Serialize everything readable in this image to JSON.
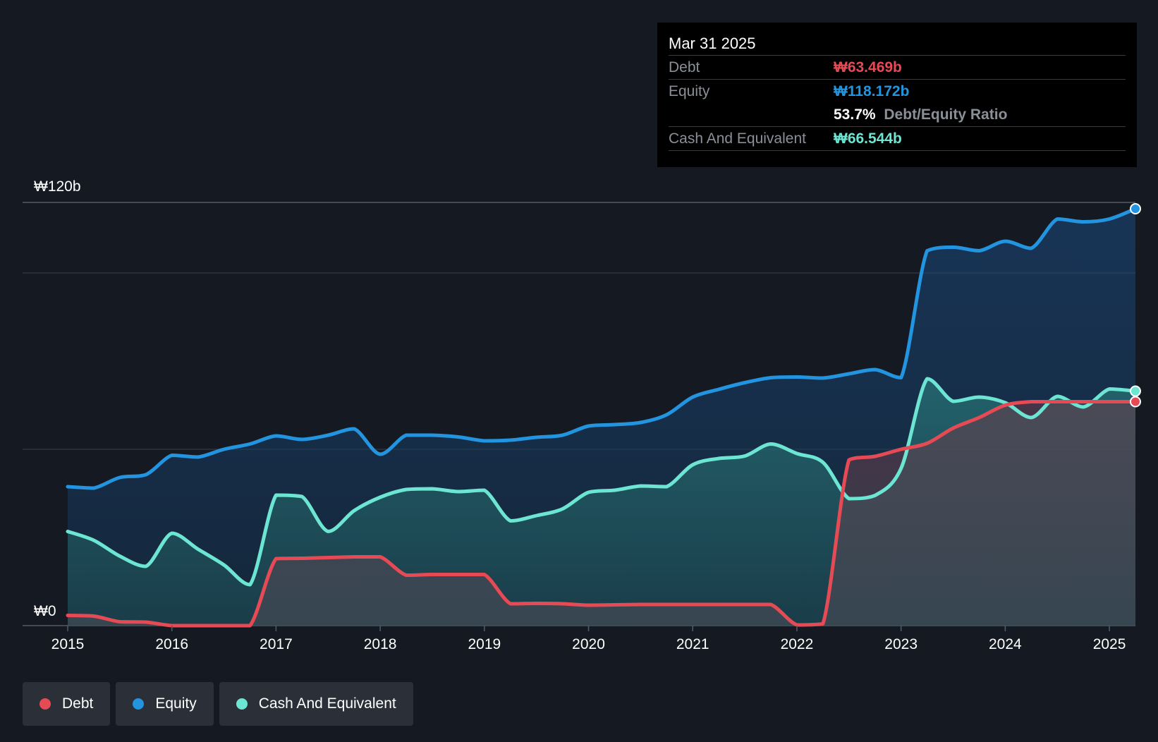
{
  "chart_data": {
    "type": "area",
    "title": "",
    "currency_prefix": "₩",
    "y_axis_labels": [
      "₩120b",
      "₩0"
    ],
    "ylim": [
      0,
      120
    ],
    "xlim": [
      2015,
      2025.25
    ],
    "x_ticks": [
      {
        "value": 2015,
        "label": "2015"
      },
      {
        "value": 2016,
        "label": "2016"
      },
      {
        "value": 2017,
        "label": "2017"
      },
      {
        "value": 2018,
        "label": "2018"
      },
      {
        "value": 2019,
        "label": "2019"
      },
      {
        "value": 2020,
        "label": "2020"
      },
      {
        "value": 2021,
        "label": "2021"
      },
      {
        "value": 2022,
        "label": "2022"
      },
      {
        "value": 2023,
        "label": "2023"
      },
      {
        "value": 2024,
        "label": "2024"
      },
      {
        "value": 2025,
        "label": "2025"
      }
    ],
    "gridlines": [
      120,
      100,
      50
    ],
    "series": [
      {
        "name": "Equity",
        "color": "#2394df",
        "points": [
          [
            2015.0,
            39.4
          ],
          [
            2015.25,
            39.0
          ],
          [
            2015.5,
            42.0
          ],
          [
            2015.75,
            42.8
          ],
          [
            2016.0,
            48.3
          ],
          [
            2016.25,
            47.8
          ],
          [
            2016.5,
            50.0
          ],
          [
            2016.75,
            51.5
          ],
          [
            2017.0,
            53.8
          ],
          [
            2017.25,
            52.8
          ],
          [
            2017.5,
            54.0
          ],
          [
            2017.75,
            55.8
          ],
          [
            2018.0,
            48.6
          ],
          [
            2018.25,
            54.0
          ],
          [
            2018.5,
            54.0
          ],
          [
            2018.75,
            53.5
          ],
          [
            2019.0,
            52.4
          ],
          [
            2019.25,
            52.6
          ],
          [
            2019.5,
            53.4
          ],
          [
            2019.75,
            54.0
          ],
          [
            2020.0,
            56.6
          ],
          [
            2020.25,
            57.0
          ],
          [
            2020.5,
            57.6
          ],
          [
            2020.75,
            59.8
          ],
          [
            2021.0,
            64.8
          ],
          [
            2021.25,
            67.0
          ],
          [
            2021.5,
            68.9
          ],
          [
            2021.75,
            70.3
          ],
          [
            2022.0,
            70.5
          ],
          [
            2022.25,
            70.2
          ],
          [
            2022.5,
            71.4
          ],
          [
            2022.75,
            72.6
          ],
          [
            2023.0,
            70.3
          ],
          [
            2023.25,
            106.3
          ],
          [
            2023.5,
            107.3
          ],
          [
            2023.75,
            106.3
          ],
          [
            2024.0,
            109.0
          ],
          [
            2024.25,
            107.0
          ],
          [
            2024.5,
            115.3
          ],
          [
            2024.75,
            114.5
          ],
          [
            2025.0,
            115.3
          ],
          [
            2025.25,
            118.2
          ]
        ]
      },
      {
        "name": "Cash And Equivalent",
        "color": "#6ce5d3",
        "points": [
          [
            2015.0,
            26.7
          ],
          [
            2015.25,
            24.2
          ],
          [
            2015.5,
            19.7
          ],
          [
            2015.75,
            16.8
          ],
          [
            2016.0,
            26.2
          ],
          [
            2016.25,
            21.7
          ],
          [
            2016.5,
            17.2
          ],
          [
            2016.75,
            11.6
          ],
          [
            2017.0,
            37.0
          ],
          [
            2017.25,
            36.6
          ],
          [
            2017.5,
            26.7
          ],
          [
            2017.75,
            32.6
          ],
          [
            2018.0,
            36.4
          ],
          [
            2018.25,
            38.6
          ],
          [
            2018.5,
            38.8
          ],
          [
            2018.75,
            38.0
          ],
          [
            2019.0,
            38.4
          ],
          [
            2019.25,
            29.7
          ],
          [
            2019.5,
            31.2
          ],
          [
            2019.75,
            33.1
          ],
          [
            2020.0,
            37.8
          ],
          [
            2020.25,
            38.4
          ],
          [
            2020.5,
            39.6
          ],
          [
            2020.75,
            39.4
          ],
          [
            2021.0,
            45.6
          ],
          [
            2021.25,
            47.4
          ],
          [
            2021.5,
            48.1
          ],
          [
            2021.75,
            51.5
          ],
          [
            2022.0,
            48.8
          ],
          [
            2022.25,
            46.3
          ],
          [
            2022.5,
            36.0
          ],
          [
            2022.75,
            36.9
          ],
          [
            2023.0,
            44.6
          ],
          [
            2023.25,
            70.0
          ],
          [
            2023.5,
            63.6
          ],
          [
            2023.75,
            64.8
          ],
          [
            2024.0,
            63.2
          ],
          [
            2024.25,
            59.0
          ],
          [
            2024.5,
            65.0
          ],
          [
            2024.75,
            62.0
          ],
          [
            2025.0,
            67.1
          ],
          [
            2025.25,
            66.5
          ]
        ]
      },
      {
        "name": "Debt",
        "color": "#e64a54",
        "points": [
          [
            2015.0,
            2.9
          ],
          [
            2015.25,
            2.7
          ],
          [
            2015.5,
            1.1
          ],
          [
            2015.75,
            1.0
          ],
          [
            2016.0,
            0.0
          ],
          [
            2016.25,
            0.0
          ],
          [
            2016.5,
            0.0
          ],
          [
            2016.75,
            0.0
          ],
          [
            2017.0,
            19.0
          ],
          [
            2017.25,
            19.1
          ],
          [
            2017.5,
            19.3
          ],
          [
            2017.75,
            19.5
          ],
          [
            2018.0,
            19.5
          ],
          [
            2018.25,
            14.3
          ],
          [
            2018.5,
            14.5
          ],
          [
            2018.75,
            14.5
          ],
          [
            2019.0,
            14.5
          ],
          [
            2019.25,
            6.2
          ],
          [
            2019.5,
            6.3
          ],
          [
            2019.75,
            6.2
          ],
          [
            2020.0,
            5.8
          ],
          [
            2020.25,
            5.9
          ],
          [
            2020.5,
            6.0
          ],
          [
            2020.75,
            6.0
          ],
          [
            2021.0,
            6.0
          ],
          [
            2021.25,
            6.0
          ],
          [
            2021.5,
            6.0
          ],
          [
            2021.75,
            6.0
          ],
          [
            2022.0,
            0.2
          ],
          [
            2022.25,
            0.5
          ],
          [
            2022.5,
            47.0
          ],
          [
            2022.75,
            48.0
          ],
          [
            2023.0,
            50.0
          ],
          [
            2023.25,
            51.7
          ],
          [
            2023.5,
            56.0
          ],
          [
            2023.75,
            59.0
          ],
          [
            2024.0,
            62.5
          ],
          [
            2024.25,
            63.5
          ],
          [
            2024.5,
            63.5
          ],
          [
            2024.75,
            63.5
          ],
          [
            2025.0,
            63.5
          ],
          [
            2025.25,
            63.5
          ]
        ]
      }
    ]
  },
  "tooltip": {
    "date": "Mar 31 2025",
    "debt_label": "Debt",
    "debt_value": "₩63.469b",
    "equity_label": "Equity",
    "equity_value": "₩118.172b",
    "ratio_pct": "53.7%",
    "ratio_label": "Debt/Equity Ratio",
    "cash_label": "Cash And Equivalent",
    "cash_value": "₩66.544b"
  },
  "legend": {
    "items": [
      {
        "label": "Debt",
        "color": "#e64a54"
      },
      {
        "label": "Equity",
        "color": "#2394df"
      },
      {
        "label": "Cash And Equivalent",
        "color": "#6ce5d3"
      }
    ]
  },
  "colors": {
    "background": "#151a22",
    "debt": "#e64a54",
    "equity": "#2394df",
    "cash": "#6ce5d3"
  }
}
